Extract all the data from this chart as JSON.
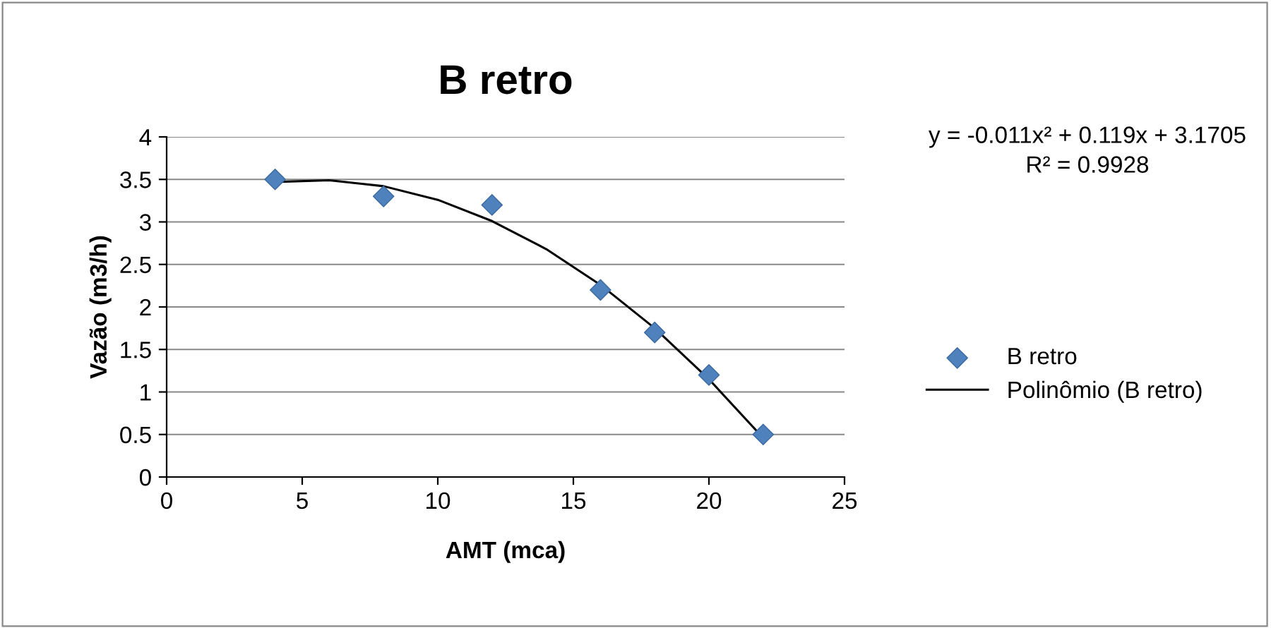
{
  "chart_data": {
    "type": "scatter",
    "title": "B retro",
    "xlabel": "AMT (mca)",
    "ylabel": "Vazão (m3/h)",
    "xlim": [
      0,
      25
    ],
    "xticks": [
      0,
      5,
      10,
      15,
      20,
      25
    ],
    "ylim": [
      0,
      4
    ],
    "yticks": [
      0,
      0.5,
      1,
      1.5,
      2,
      2.5,
      3,
      3.5,
      4
    ],
    "grid": "y",
    "legend": "right",
    "series": [
      {
        "name": "B retro",
        "marker": "diamond",
        "color": "#4f81bd",
        "x": [
          4,
          8,
          12,
          16,
          18,
          20,
          22
        ],
        "values": [
          3.5,
          3.3,
          3.2,
          2.2,
          1.7,
          1.2,
          0.5
        ]
      },
      {
        "name": "Polinômio (B retro)",
        "type": "line",
        "color": "#000000",
        "line_style": "solid",
        "marker": "none",
        "x": [
          4,
          6,
          8,
          10,
          12,
          14,
          16,
          18,
          20,
          22
        ],
        "values": [
          3.47,
          3.49,
          3.42,
          3.26,
          3.01,
          2.68,
          2.26,
          1.75,
          1.15,
          0.46
        ]
      }
    ],
    "annotations": [
      "y = -0.011x² + 0.119x + 3.1705",
      "R² = 0.9928"
    ]
  }
}
